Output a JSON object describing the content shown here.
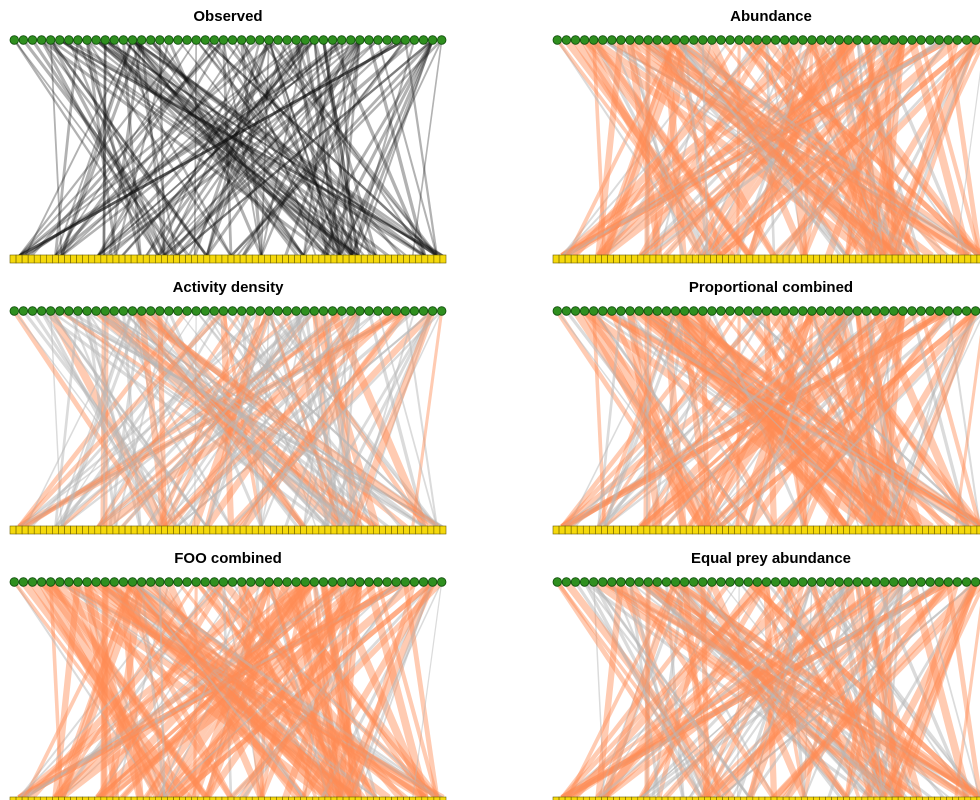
{
  "colors": {
    "observed_link": "#111111",
    "highlight_link": "#ff8c55",
    "background_link": "#b8b8b8",
    "predator_node_fill": "#2f8f1f",
    "predator_node_stroke": "#0f4d0a",
    "prey_node_fill": "#f5d90c",
    "prey_node_stroke": "#6b5c00"
  },
  "network": {
    "predator_count": 48,
    "prey_count": 72
  },
  "panels": [
    {
      "id": "observed",
      "title": "Observed",
      "style": "observed"
    },
    {
      "id": "abundance",
      "title": "Abundance",
      "style": "predicted",
      "highlight_share": 0.62
    },
    {
      "id": "activity",
      "title": "Activity density",
      "style": "predicted",
      "highlight_share": 0.25
    },
    {
      "id": "proportional",
      "title": "Proportional combined",
      "style": "predicted",
      "highlight_share": 0.6
    },
    {
      "id": "foo",
      "title": "FOO combined",
      "style": "predicted",
      "highlight_share": 0.68
    },
    {
      "id": "equal",
      "title": "Equal prey abundance",
      "style": "predicted",
      "highlight_share": 0.55
    }
  ]
}
